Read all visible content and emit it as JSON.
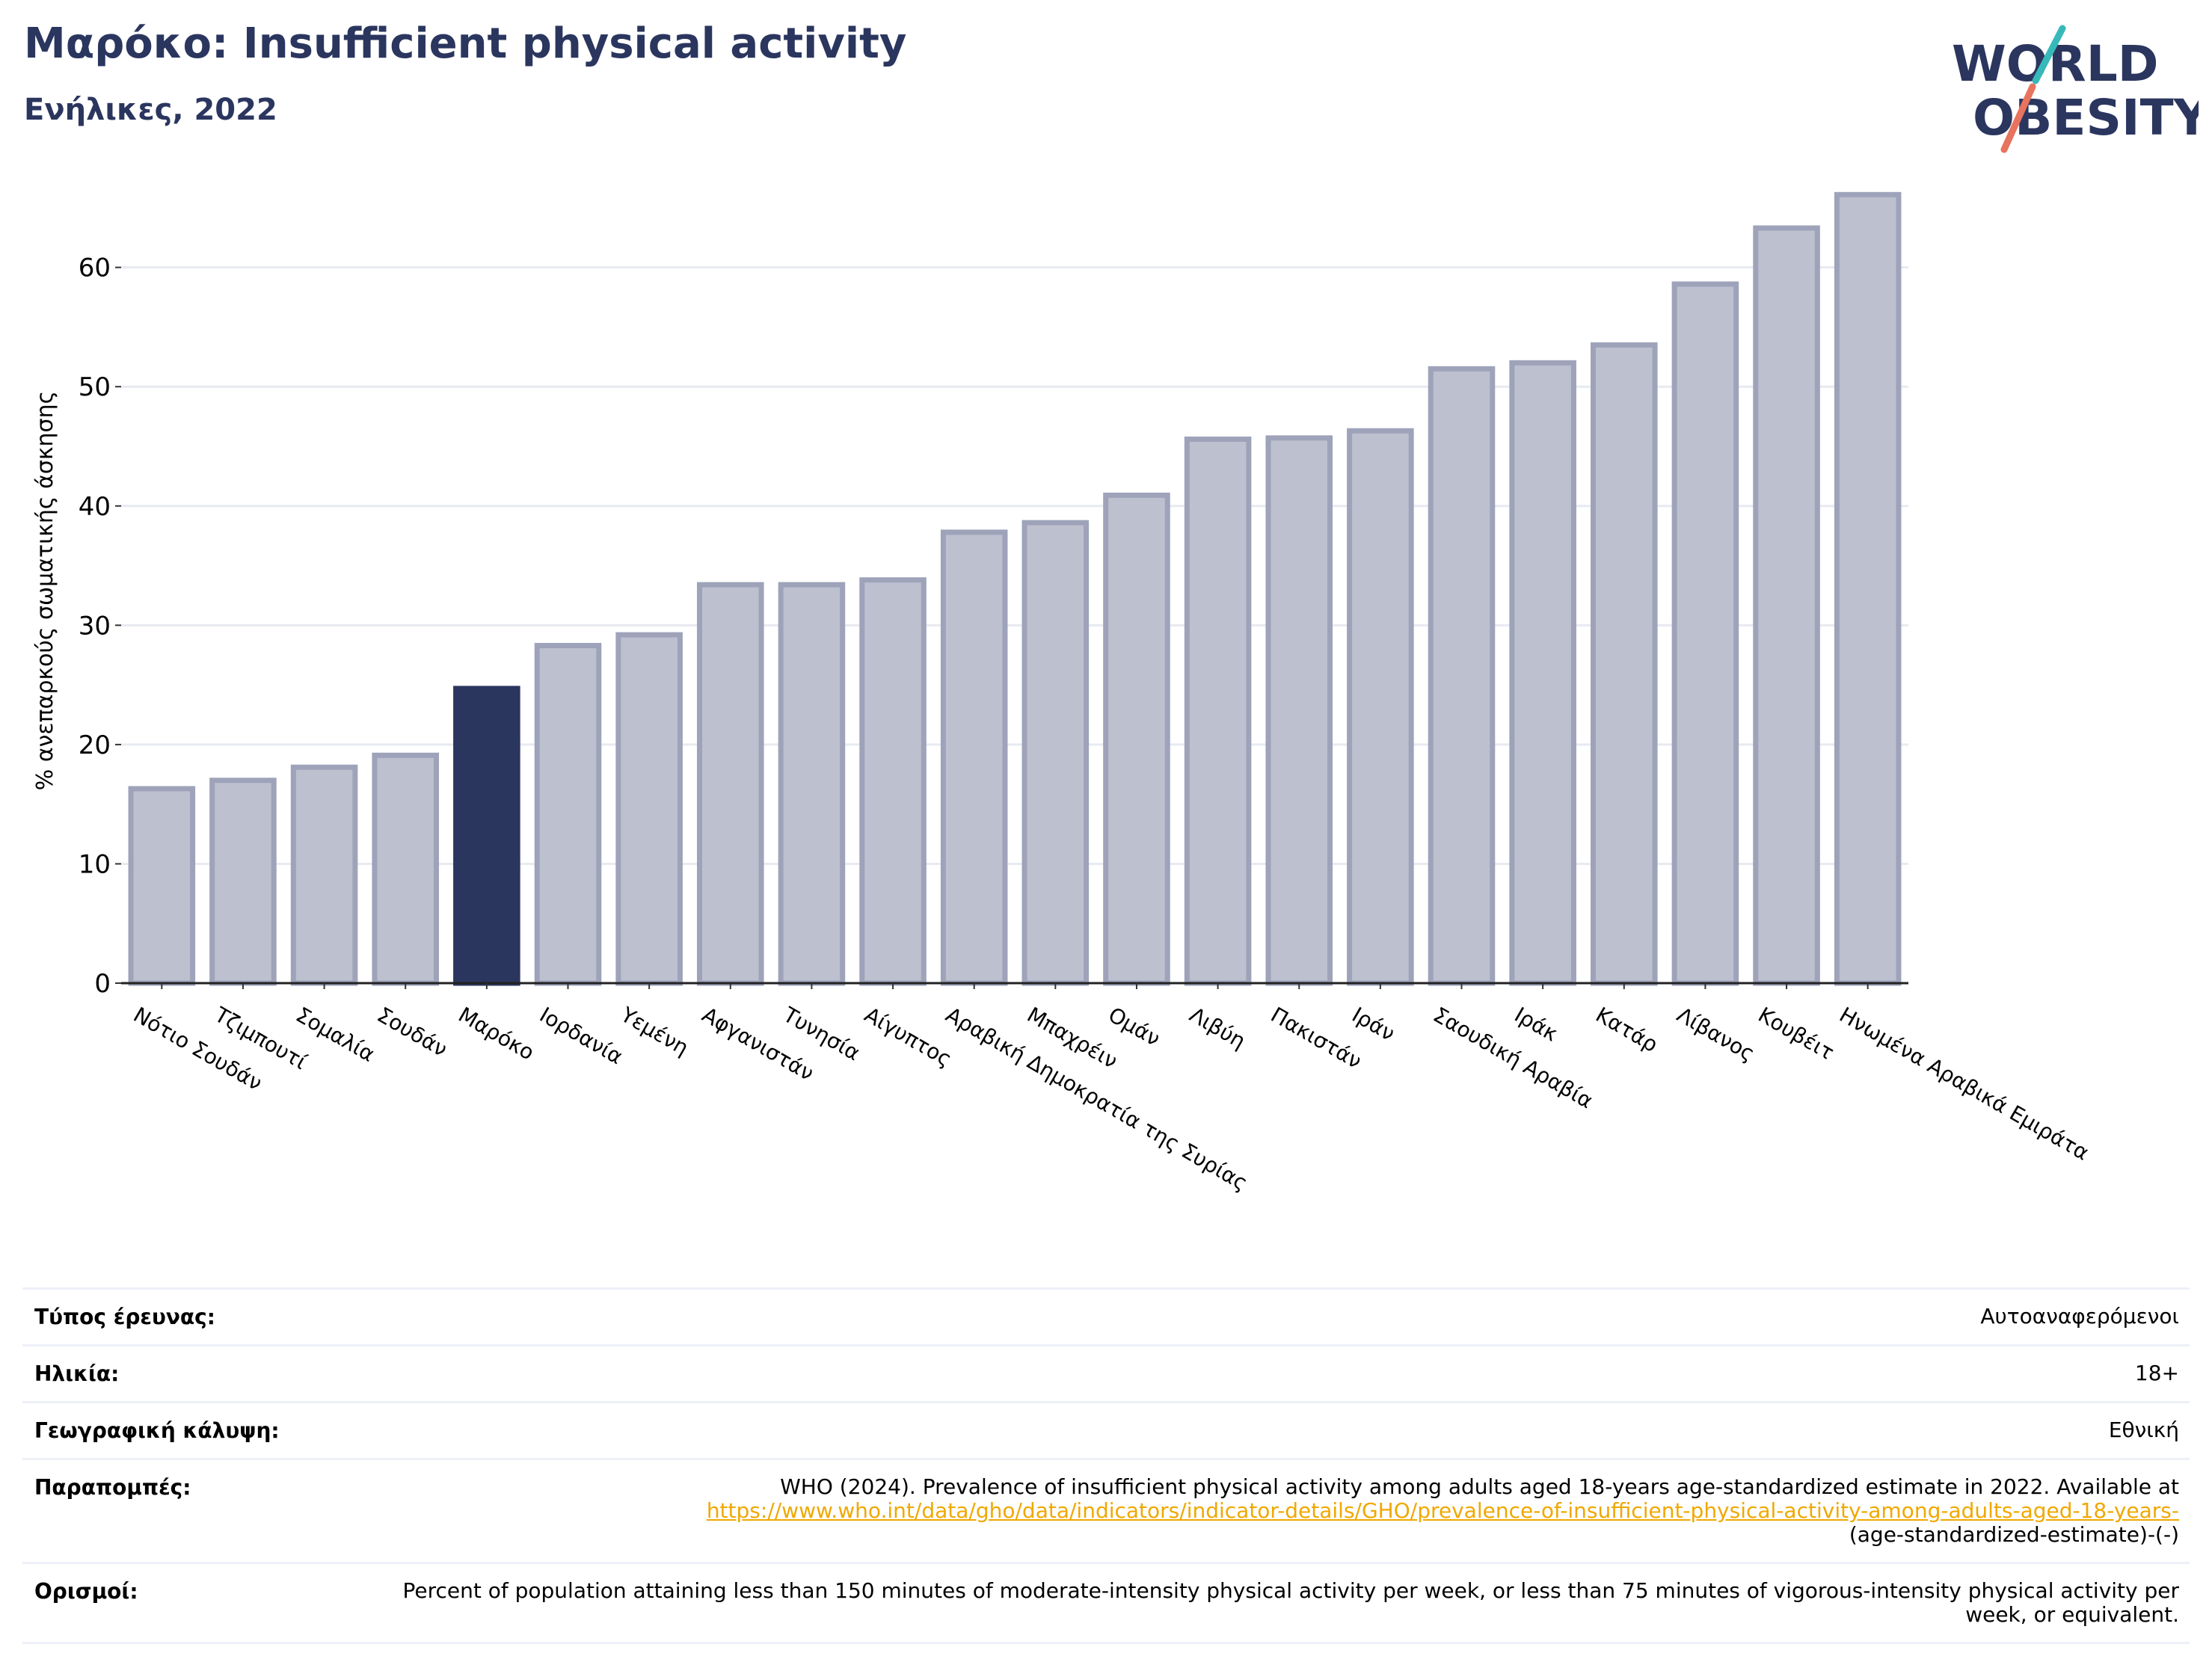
{
  "header": {
    "title": "Μαρόκο: Insufficient physical activity",
    "subtitle": "Ενήλικες, 2022"
  },
  "logo": {
    "line1": "WORLD",
    "line2": "OBESITY"
  },
  "colors": {
    "highlight": "#2b365f",
    "bar_fill": "#bcc0cf",
    "bar_stroke": "#9ea3ba",
    "accent_teal": "#38b9b9",
    "accent_coral": "#e8735e",
    "link": "#f0a800"
  },
  "chart_data": {
    "type": "bar",
    "categories": [
      "Νότιο Σουδάν",
      "Τζιμπουτί",
      "Σομαλία",
      "Σουδάν",
      "Μαρόκο",
      "Ιορδανία",
      "Υεμένη",
      "Αφγανιστάν",
      "Τυνησία",
      "Αίγυπτος",
      "Αραβική Δημοκρατία της Συρίας",
      "Μπαχρέιν",
      "Ομάν",
      "Λιβύη",
      "Πακιστάν",
      "Ιράν",
      "Σαουδική Αραβία",
      "Ιράκ",
      "Κατάρ",
      "Λίβανος",
      "Κουβέιτ",
      "Ηνωμένα Αραβικά Εμιράτα"
    ],
    "values": [
      16.3,
      17.0,
      18.1,
      19.1,
      24.7,
      28.3,
      29.2,
      33.4,
      33.4,
      33.8,
      37.8,
      38.6,
      40.9,
      45.6,
      45.7,
      46.3,
      51.5,
      52.0,
      53.5,
      58.6,
      63.3,
      66.1
    ],
    "highlight": "Μαρόκο",
    "ylabel": "% ανεπαρκούς σωματικής άσκησης",
    "ylim": [
      0,
      68
    ],
    "yticks": [
      0,
      10,
      20,
      30,
      40,
      50,
      60
    ],
    "grid": true
  },
  "meta": [
    {
      "label": "Τύπος έρευνας:",
      "value": "Αυτοαναφερόμενοι"
    },
    {
      "label": "Ηλικία:",
      "value": "18+"
    },
    {
      "label": "Γεωγραφική κάλυψη:",
      "value": "Εθνική"
    },
    {
      "label": "Παραπομπές:",
      "value": "WHO (2024). Prevalence of insufficient physical activity among adults aged 18-years age-standardized estimate in 2022. Available at",
      "link": "https://www.who.int/data/gho/data/indicators/indicator-details/GHO/prevalence-of-insufficient-physical-activity-among-adults-aged-18-years-",
      "tail": "(age-standardized-estimate)-(-)"
    },
    {
      "label": "Ορισμοί:",
      "value": "Percent of population attaining less than 150 minutes of moderate-intensity physical activity per week, or less than 75 minutes of vigorous-intensity physical activity per week, or equivalent."
    }
  ]
}
